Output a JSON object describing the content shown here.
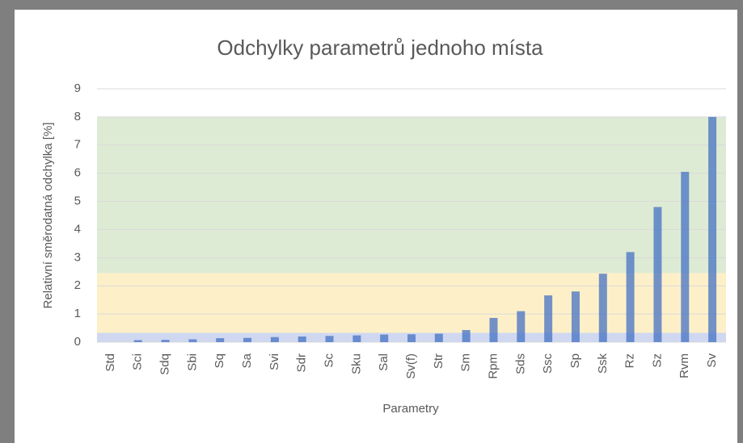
{
  "chart_data": {
    "type": "bar",
    "title": "Odchylky parametrů jednoho místa",
    "x_label": "Parametry",
    "y_label": "Relativní směrodatná odchylka [%]",
    "categories": [
      "Std",
      "Sci",
      "Sdq",
      "Sbi",
      "Sq",
      "Sa",
      "Svi",
      "Sdr",
      "Sc",
      "Sku",
      "Sal",
      "Sv(f)",
      "Str",
      "Sm",
      "Rpm",
      "Sds",
      "Ssc",
      "Sp",
      "Ssk",
      "Rz",
      "Sz",
      "Rvm",
      "Sv"
    ],
    "values": [
      0,
      0.07,
      0.08,
      0.1,
      0.14,
      0.15,
      0.18,
      0.2,
      0.22,
      0.24,
      0.27,
      0.28,
      0.3,
      0.43,
      0.86,
      1.1,
      1.66,
      1.8,
      2.43,
      3.2,
      4.8,
      6.05,
      8.0
    ],
    "color": "#4472c4",
    "bands": [
      {
        "from": 0,
        "to": 0.33,
        "color": "#cfd8f0"
      },
      {
        "from": 0.33,
        "to": 2.45,
        "color": "#fdf0c8"
      },
      {
        "from": 2.45,
        "to": 8,
        "color": "#deebd4"
      }
    ],
    "ylim": [
      0,
      9
    ],
    "yticks": [
      0,
      1,
      2,
      3,
      4,
      5,
      6,
      7,
      8,
      9
    ],
    "grid": true
  }
}
